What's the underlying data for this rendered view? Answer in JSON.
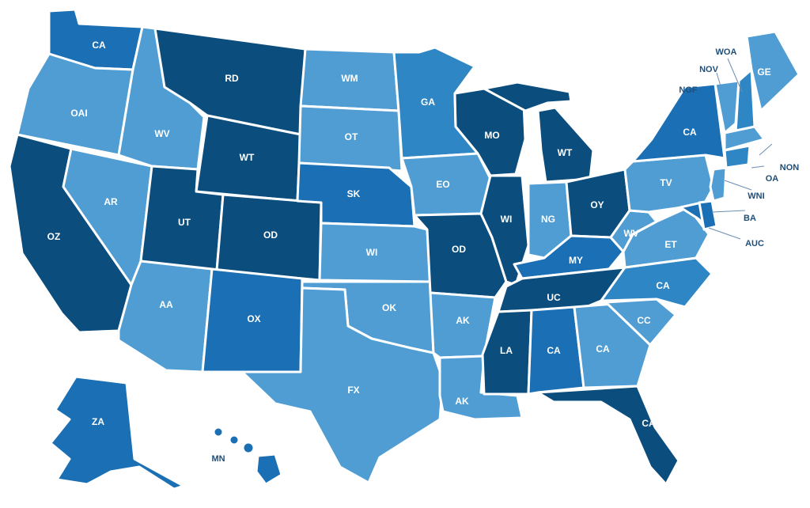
{
  "palette": {
    "c1": "#4f9dd3",
    "c2": "#2f86c4",
    "c3": "#1a6fb5",
    "c4": "#0b4d7d",
    "border": "#ffffff"
  },
  "states": [
    {
      "id": "wa",
      "label": "CA",
      "shade": "c3"
    },
    {
      "id": "or",
      "label": "OAI",
      "shade": "c1"
    },
    {
      "id": "ca",
      "label": "OZ",
      "shade": "c4"
    },
    {
      "id": "nv",
      "label": "AR",
      "shade": "c1"
    },
    {
      "id": "id",
      "label": "WV",
      "shade": "c1"
    },
    {
      "id": "mt",
      "label": "RD",
      "shade": "c4"
    },
    {
      "id": "wy",
      "label": "WT",
      "shade": "c4"
    },
    {
      "id": "ut",
      "label": "UT",
      "shade": "c4"
    },
    {
      "id": "co",
      "label": "OD",
      "shade": "c4"
    },
    {
      "id": "az",
      "label": "AA",
      "shade": "c1"
    },
    {
      "id": "nm",
      "label": "OX",
      "shade": "c3"
    },
    {
      "id": "nd",
      "label": "WM",
      "shade": "c1"
    },
    {
      "id": "sd",
      "label": "OT",
      "shade": "c1"
    },
    {
      "id": "ne",
      "label": "SK",
      "shade": "c3"
    },
    {
      "id": "ks",
      "label": "WI",
      "shade": "c1"
    },
    {
      "id": "ok",
      "label": "OK",
      "shade": "c1"
    },
    {
      "id": "tx",
      "label": "FX",
      "shade": "c1"
    },
    {
      "id": "mn",
      "label": "GA",
      "shade": "c2"
    },
    {
      "id": "ia",
      "label": "EO",
      "shade": "c1"
    },
    {
      "id": "mo",
      "label": "OD",
      "shade": "c4"
    },
    {
      "id": "ar",
      "label": "AK",
      "shade": "c1"
    },
    {
      "id": "la",
      "label": "AK",
      "shade": "c1"
    },
    {
      "id": "wi",
      "label": "MO",
      "shade": "c4"
    },
    {
      "id": "il",
      "label": "WI",
      "shade": "c4"
    },
    {
      "id": "mi",
      "label": "WT",
      "shade": "c4"
    },
    {
      "id": "in",
      "label": "NG",
      "shade": "c1"
    },
    {
      "id": "oh",
      "label": "OY",
      "shade": "c4"
    },
    {
      "id": "ky",
      "label": "MY",
      "shade": "c3"
    },
    {
      "id": "tn",
      "label": "UC",
      "shade": "c4"
    },
    {
      "id": "ms",
      "label": "LA",
      "shade": "c4"
    },
    {
      "id": "al",
      "label": "CA",
      "shade": "c3"
    },
    {
      "id": "ga",
      "label": "CA",
      "shade": "c1"
    },
    {
      "id": "fl",
      "label": "CA",
      "shade": "c4"
    },
    {
      "id": "sc",
      "label": "CC",
      "shade": "c1"
    },
    {
      "id": "nc",
      "label": "CA",
      "shade": "c2"
    },
    {
      "id": "va",
      "label": "ET",
      "shade": "c1"
    },
    {
      "id": "wv",
      "label": "WV",
      "shade": "c1"
    },
    {
      "id": "pa",
      "label": "TV",
      "shade": "c1"
    },
    {
      "id": "ny",
      "label": "CA",
      "shade": "c3"
    },
    {
      "id": "vt",
      "label": "",
      "shade": "c1"
    },
    {
      "id": "nh",
      "label": "",
      "shade": "c2"
    },
    {
      "id": "me",
      "label": "GE",
      "shade": "c1"
    },
    {
      "id": "ma",
      "label": "",
      "shade": "c1"
    },
    {
      "id": "ct",
      "label": "",
      "shade": "c2"
    },
    {
      "id": "nj",
      "label": "",
      "shade": "c1"
    },
    {
      "id": "de",
      "label": "",
      "shade": "c3"
    },
    {
      "id": "md",
      "label": "",
      "shade": "c3"
    },
    {
      "id": "ak",
      "label": "ZA",
      "shade": "c3"
    },
    {
      "id": "hi",
      "label": "",
      "shade": "c3"
    }
  ],
  "callouts": [
    {
      "id": "c-ct",
      "label": "WOA"
    },
    {
      "id": "c-vt",
      "label": "NOV"
    },
    {
      "id": "c-ny",
      "label": "NGF"
    },
    {
      "id": "c-ri",
      "label": "NON"
    },
    {
      "id": "c-ma",
      "label": "OA"
    },
    {
      "id": "c-nj",
      "label": "WNI"
    },
    {
      "id": "c-de",
      "label": "BA"
    },
    {
      "id": "c-md",
      "label": "AUC"
    },
    {
      "id": "c-hi",
      "label": "MN"
    }
  ]
}
